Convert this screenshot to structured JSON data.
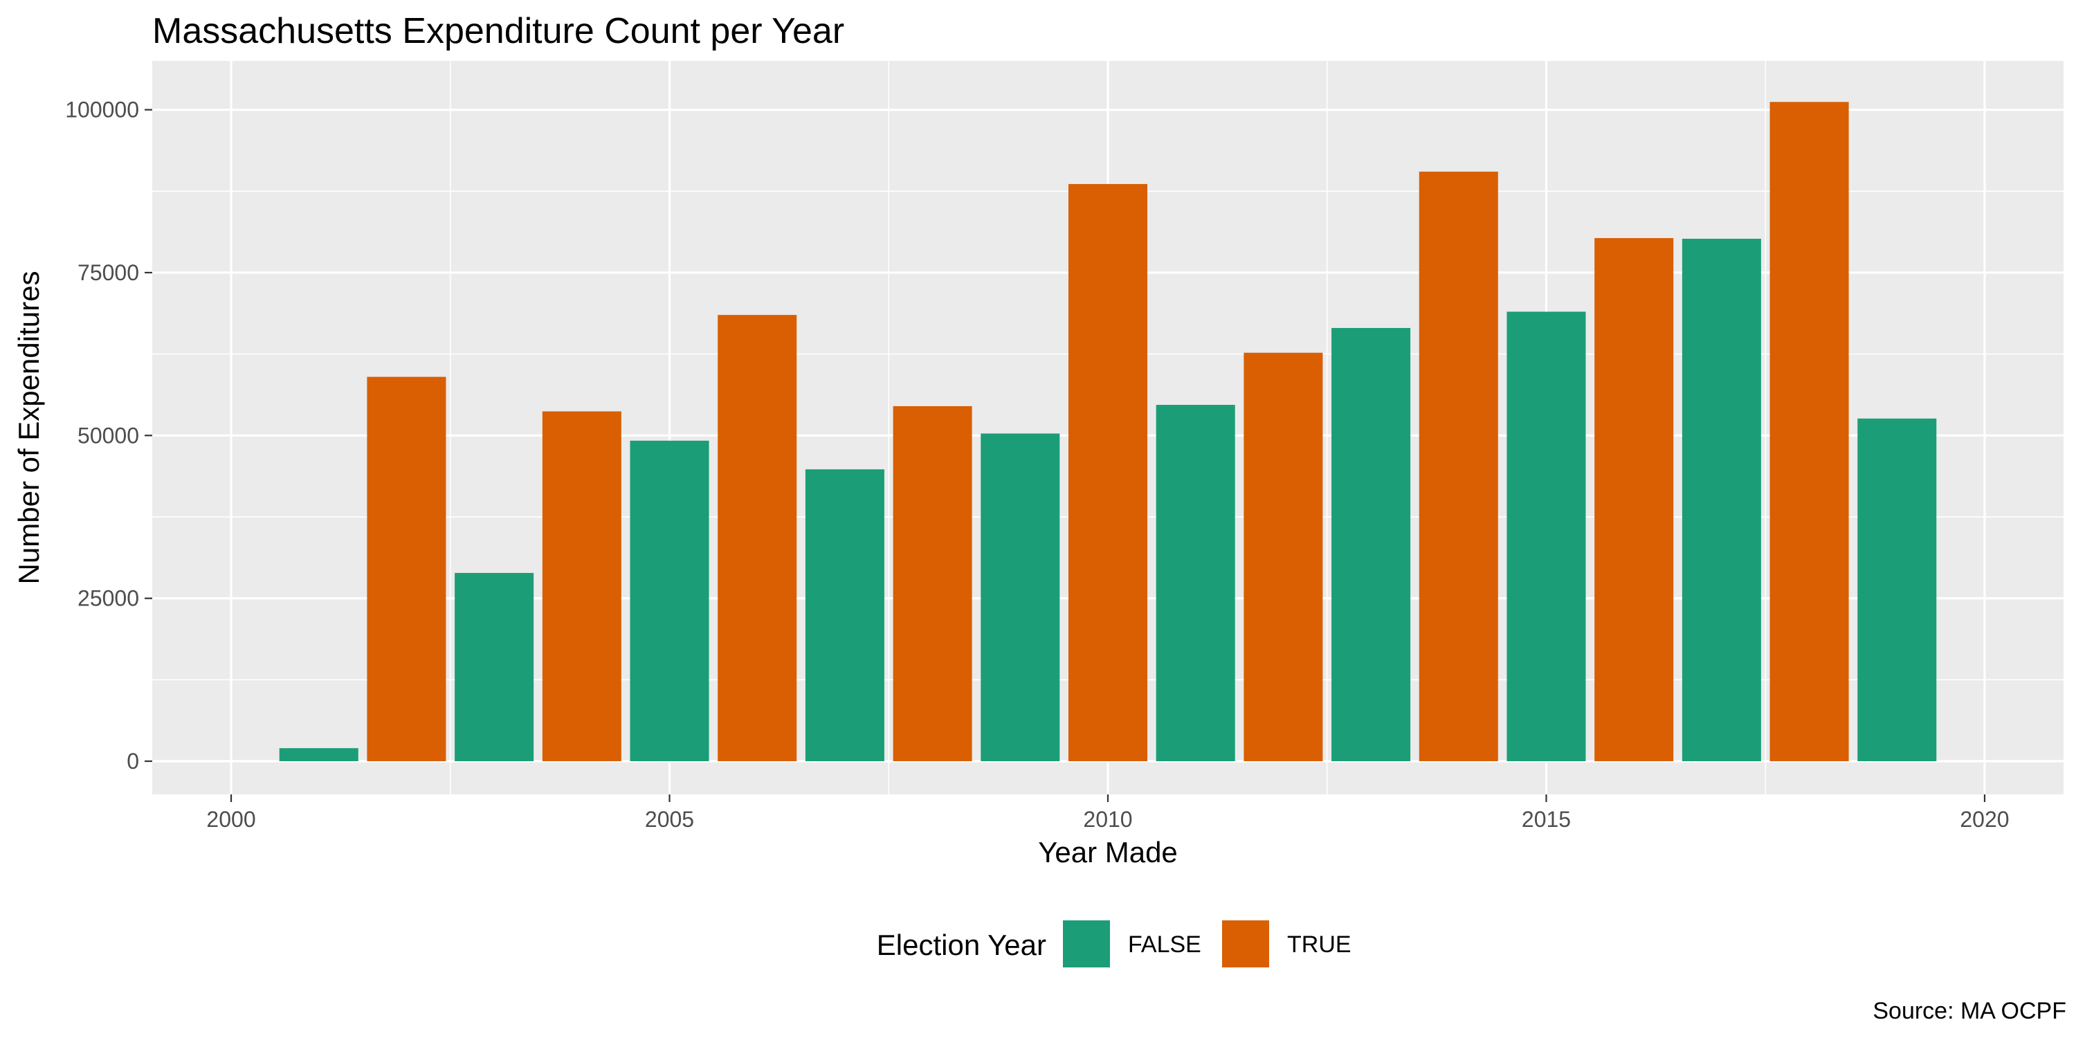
{
  "chart_data": {
    "type": "bar",
    "title": "Massachusetts Expenditure Count per Year",
    "xlabel": "Year Made",
    "ylabel": "Number of Expenditures",
    "caption": "Source: MA OCPF",
    "xlim": [
      1999.1,
      2020.9
    ],
    "ylim": [
      -5100,
      107500
    ],
    "x_ticks": [
      2000,
      2005,
      2010,
      2015,
      2020
    ],
    "y_ticks": [
      0,
      25000,
      50000,
      75000,
      100000
    ],
    "y_tick_labels": [
      "0",
      "25000",
      "50000",
      "75000",
      "100000"
    ],
    "x_tick_labels": [
      "2000",
      "2005",
      "2010",
      "2015",
      "2020"
    ],
    "grid": true,
    "legend": {
      "title": "Election Year",
      "position": "bottom",
      "entries": [
        {
          "label": "FALSE",
          "color": "#1b9e77"
        },
        {
          "label": "TRUE",
          "color": "#d95f02"
        }
      ]
    },
    "data": [
      {
        "year": 2001,
        "count": 2000,
        "election_year": "FALSE"
      },
      {
        "year": 2002,
        "count": 59000,
        "election_year": "TRUE"
      },
      {
        "year": 2003,
        "count": 28900,
        "election_year": "FALSE"
      },
      {
        "year": 2004,
        "count": 53700,
        "election_year": "TRUE"
      },
      {
        "year": 2005,
        "count": 49200,
        "election_year": "FALSE"
      },
      {
        "year": 2006,
        "count": 68500,
        "election_year": "TRUE"
      },
      {
        "year": 2007,
        "count": 44800,
        "election_year": "FALSE"
      },
      {
        "year": 2008,
        "count": 54500,
        "election_year": "TRUE"
      },
      {
        "year": 2009,
        "count": 50300,
        "election_year": "FALSE"
      },
      {
        "year": 2010,
        "count": 88600,
        "election_year": "TRUE"
      },
      {
        "year": 2011,
        "count": 54700,
        "election_year": "FALSE"
      },
      {
        "year": 2012,
        "count": 62700,
        "election_year": "TRUE"
      },
      {
        "year": 2013,
        "count": 66500,
        "election_year": "FALSE"
      },
      {
        "year": 2014,
        "count": 90500,
        "election_year": "TRUE"
      },
      {
        "year": 2015,
        "count": 69000,
        "election_year": "FALSE"
      },
      {
        "year": 2016,
        "count": 80300,
        "election_year": "TRUE"
      },
      {
        "year": 2017,
        "count": 80200,
        "election_year": "FALSE"
      },
      {
        "year": 2018,
        "count": 101200,
        "election_year": "TRUE"
      },
      {
        "year": 2019,
        "count": 52600,
        "election_year": "FALSE"
      }
    ]
  }
}
